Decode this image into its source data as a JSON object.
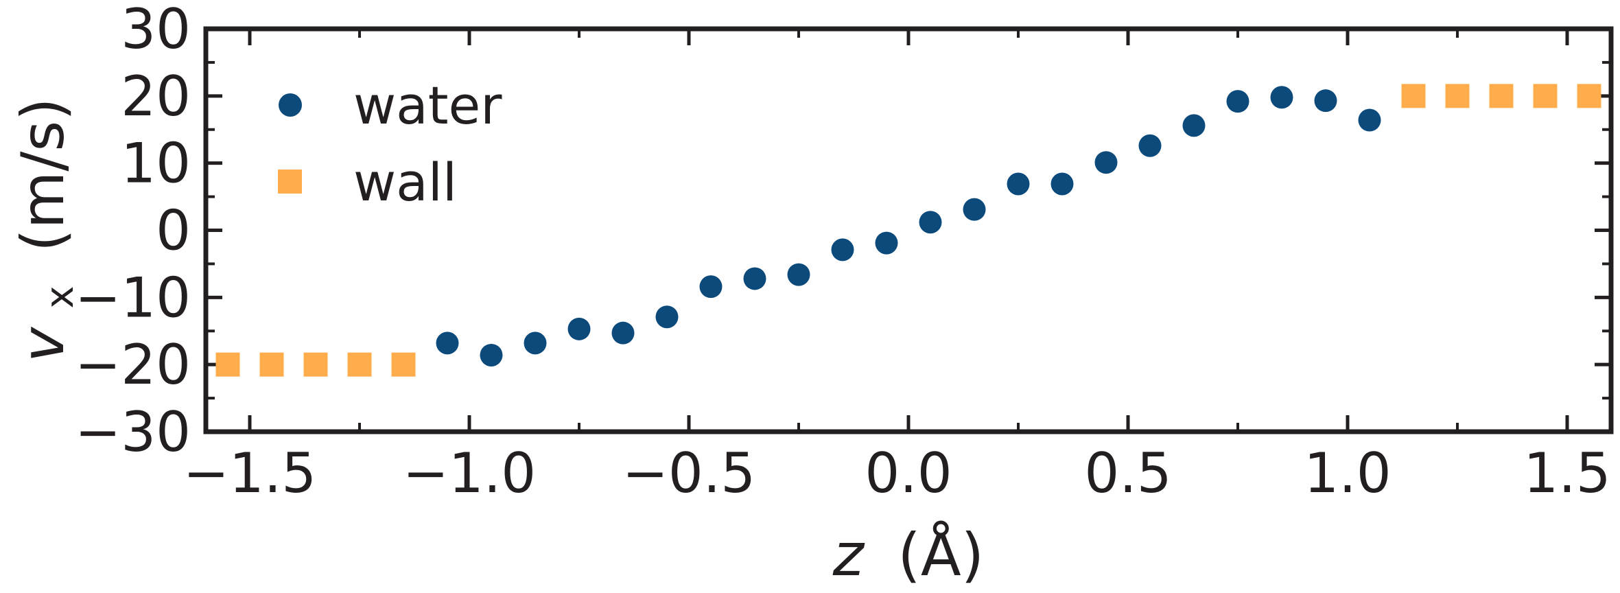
{
  "chart_data": {
    "type": "scatter",
    "title": "",
    "xlabel": {
      "var": "z",
      "unit": "(Å)"
    },
    "ylabel": {
      "var": "v",
      "sub": "x",
      "unit": "(m/s)"
    },
    "xlim": [
      -1.6,
      1.6
    ],
    "ylim": [
      -30,
      30
    ],
    "xticks": [
      -1.5,
      -1.0,
      -0.5,
      0.0,
      0.5,
      1.0,
      1.5
    ],
    "xtick_labels": [
      "−1.5",
      "−1.0",
      "−0.5",
      "0.0",
      "0.5",
      "1.0",
      "1.5"
    ],
    "yticks": [
      -30,
      -20,
      -10,
      0,
      10,
      20,
      30
    ],
    "ytick_labels": [
      "−30",
      "−20",
      "−10",
      "0",
      "10",
      "20",
      "30"
    ],
    "grid": false,
    "legend": "top-left",
    "series": [
      {
        "name": "water",
        "marker": "circle",
        "color": "#0d4a7c",
        "x": [
          -1.05,
          -0.95,
          -0.85,
          -0.75,
          -0.65,
          -0.55,
          -0.45,
          -0.35,
          -0.25,
          -0.15,
          -0.05,
          0.05,
          0.15,
          0.25,
          0.35,
          0.45,
          0.55,
          0.65,
          0.75,
          0.85,
          0.95,
          1.05
        ],
        "y": [
          -16.8,
          -18.6,
          -16.8,
          -14.7,
          -15.3,
          -12.9,
          -8.4,
          -7.2,
          -6.6,
          -2.9,
          -1.9,
          1.2,
          3.1,
          6.9,
          6.9,
          10.1,
          12.6,
          15.6,
          19.2,
          19.8,
          19.3,
          16.4
        ]
      },
      {
        "name": "wall",
        "marker": "square",
        "color": "#ffad4c",
        "x": [
          -1.55,
          -1.45,
          -1.35,
          -1.25,
          -1.15,
          1.15,
          1.25,
          1.35,
          1.45,
          1.55
        ],
        "y": [
          -20,
          -20,
          -20,
          -20,
          -20,
          20,
          20,
          20,
          20,
          20
        ]
      }
    ]
  }
}
